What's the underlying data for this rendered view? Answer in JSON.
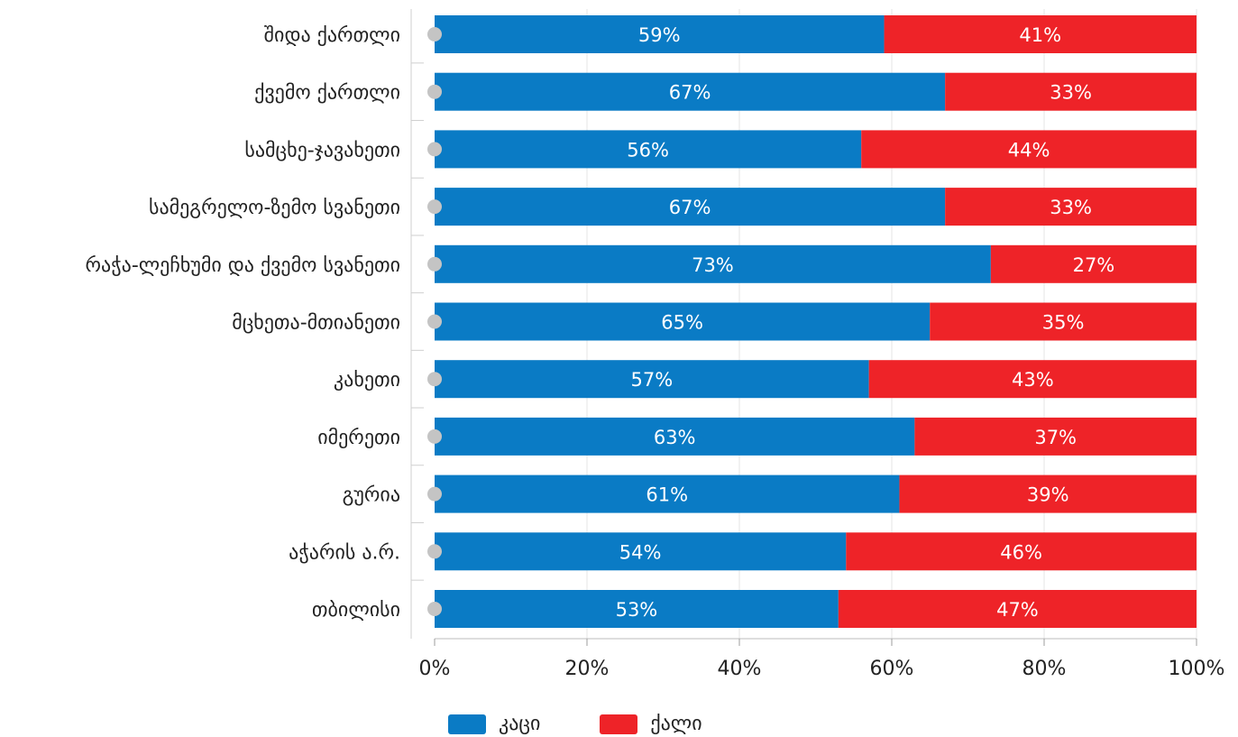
{
  "chart_data": {
    "type": "bar",
    "orientation": "horizontal",
    "stacked": true,
    "percent": true,
    "categories": [
      "შიდა ქართლი",
      "ქვემო ქართლი",
      "სამცხე-ჯავახეთი",
      "სამეგრელო-ზემო სვანეთი",
      "რაჭა-ლეჩხუმი და ქვემო სვანეთი",
      "მცხეთა-მთიანეთი",
      "კახეთი",
      "იმერეთი",
      "გურია",
      "აჭარის ა.რ.",
      "თბილისი"
    ],
    "series": [
      {
        "name": "კაცი",
        "color": "#0A7BC5",
        "values": [
          59,
          67,
          56,
          67,
          73,
          65,
          57,
          63,
          61,
          54,
          53
        ]
      },
      {
        "name": "ქალი",
        "color": "#EE2328",
        "values": [
          41,
          33,
          44,
          33,
          27,
          35,
          43,
          37,
          39,
          46,
          47
        ]
      }
    ],
    "value_labels": [
      [
        "59%",
        "67%",
        "56%",
        "67%",
        "73%",
        "65%",
        "57%",
        "63%",
        "61%",
        "54%",
        "53%"
      ],
      [
        "41%",
        "33%",
        "44%",
        "33%",
        "27%",
        "35%",
        "43%",
        "37%",
        "39%",
        "46%",
        "47%"
      ]
    ],
    "xlim": [
      0,
      100
    ],
    "xticks": [
      0,
      20,
      40,
      60,
      80,
      100
    ],
    "xtick_labels": [
      "0%",
      "20%",
      "40%",
      "60%",
      "80%",
      "100%"
    ],
    "grid": true,
    "legend_position": "bottom-left"
  }
}
